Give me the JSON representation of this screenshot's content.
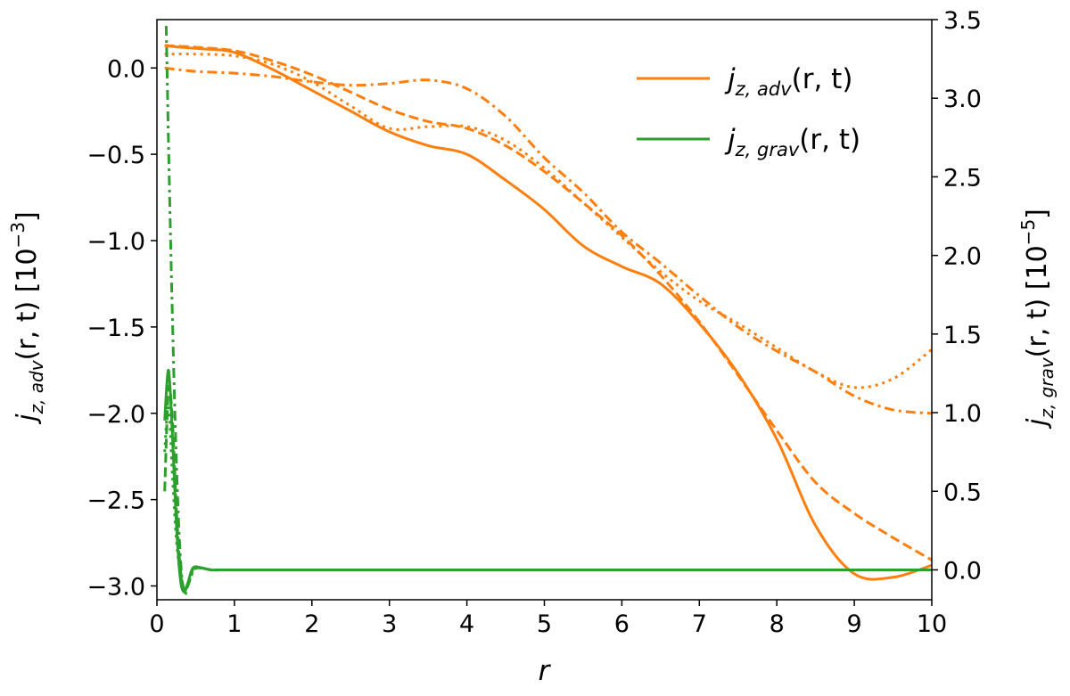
{
  "chart_data": {
    "type": "line",
    "xlabel": "r",
    "ylabel_left": "j̇z,adv(r, t) [10−3]",
    "ylabel_left_parts": {
      "base": "j",
      "dot": "˙",
      "sub": "z, adv",
      "args": "(r, t) [10",
      "exp": "−3",
      "close": "]"
    },
    "ylabel_right": "j̇z,grav(r, t) [10−5]",
    "ylabel_right_parts": {
      "base": "j",
      "dot": "˙",
      "sub": "z, grav",
      "args": "(r, t) [10",
      "exp": "−5",
      "close": "]"
    },
    "xlim": [
      0,
      10.0
    ],
    "ylim_left": [
      -3.08,
      0.28
    ],
    "ylim_right": [
      -0.19,
      3.5
    ],
    "x_ticks": [
      0,
      1,
      2,
      3,
      4,
      5,
      6,
      7,
      8,
      9,
      10
    ],
    "x_tick_labels": [
      "0",
      "1",
      "2",
      "3",
      "4",
      "5",
      "6",
      "7",
      "8",
      "9",
      "10"
    ],
    "y_left_ticks": [
      0.0,
      -0.5,
      -1.0,
      -1.5,
      -2.0,
      -2.5,
      -3.0
    ],
    "y_left_tick_labels": [
      "0.0",
      "−0.5",
      "−1.0",
      "−1.5",
      "−2.0",
      "−2.5",
      "−3.0"
    ],
    "y_right_ticks": [
      3.5,
      3.0,
      2.5,
      2.0,
      1.5,
      1.0,
      0.5,
      0.0
    ],
    "y_right_tick_labels": [
      "3.5",
      "3.0",
      "2.5",
      "2.0",
      "1.5",
      "1.0",
      "0.5",
      "0.0"
    ],
    "grid": false,
    "legend_position": "top-right",
    "legend": [
      {
        "base": "j",
        "dot": "˙",
        "sub": "z, adv",
        "args": "(r, t)",
        "color": "#ff7f0e"
      },
      {
        "base": "j",
        "dot": "˙",
        "sub": "z, grav",
        "args": "(r, t)",
        "color": "#2ca02c"
      }
    ],
    "series": [
      {
        "axis": "left",
        "color": "#ff7f0e",
        "style": "solid",
        "x": [
          0.1,
          0.3,
          0.6,
          1.0,
          1.5,
          2.0,
          2.5,
          3.0,
          3.5,
          4.0,
          4.5,
          5.0,
          5.5,
          6.0,
          6.5,
          7.0,
          7.5,
          8.0,
          8.5,
          9.0,
          9.5,
          10.0
        ],
        "y": [
          0.13,
          0.12,
          0.11,
          0.09,
          -0.01,
          -0.13,
          -0.25,
          -0.37,
          -0.45,
          -0.5,
          -0.65,
          -0.82,
          -1.03,
          -1.15,
          -1.25,
          -1.48,
          -1.77,
          -2.15,
          -2.65,
          -2.93,
          -2.95,
          -2.88
        ]
      },
      {
        "axis": "left",
        "color": "#ff7f0e",
        "style": "dashed",
        "x": [
          0.1,
          0.5,
          1.0,
          1.5,
          2.0,
          2.5,
          3.0,
          3.5,
          4.0,
          4.5,
          5.0,
          5.5,
          6.0,
          6.5,
          7.0,
          7.5,
          8.0,
          8.5,
          9.0,
          9.5,
          10.0
        ],
        "y": [
          0.13,
          0.12,
          0.1,
          0.04,
          -0.04,
          -0.14,
          -0.24,
          -0.31,
          -0.35,
          -0.45,
          -0.6,
          -0.78,
          -0.97,
          -1.2,
          -1.47,
          -1.78,
          -2.1,
          -2.4,
          -2.58,
          -2.72,
          -2.85
        ]
      },
      {
        "axis": "left",
        "color": "#ff7f0e",
        "style": "dotted",
        "x": [
          0.1,
          0.5,
          1.0,
          1.5,
          2.0,
          2.5,
          3.0,
          3.5,
          4.0,
          4.5,
          5.0,
          5.5,
          6.0,
          6.5,
          7.0,
          7.5,
          8.0,
          8.5,
          9.0,
          9.5,
          10.0
        ],
        "y": [
          0.08,
          0.08,
          0.07,
          0.02,
          -0.08,
          -0.22,
          -0.35,
          -0.34,
          -0.34,
          -0.42,
          -0.58,
          -0.78,
          -0.98,
          -1.18,
          -1.35,
          -1.48,
          -1.62,
          -1.76,
          -1.85,
          -1.8,
          -1.63
        ]
      },
      {
        "axis": "left",
        "color": "#ff7f0e",
        "style": "dashdot",
        "x": [
          0.1,
          0.5,
          1.0,
          1.5,
          2.0,
          2.5,
          3.0,
          3.5,
          4.0,
          4.5,
          5.0,
          5.5,
          6.0,
          6.5,
          7.0,
          7.5,
          8.0,
          8.5,
          9.0,
          9.5,
          10.0
        ],
        "y": [
          0.0,
          -0.02,
          -0.03,
          -0.05,
          -0.08,
          -0.1,
          -0.09,
          -0.07,
          -0.12,
          -0.28,
          -0.52,
          -0.72,
          -0.95,
          -1.13,
          -1.32,
          -1.5,
          -1.64,
          -1.76,
          -1.9,
          -1.98,
          -2.0
        ]
      },
      {
        "axis": "right",
        "color": "#2ca02c",
        "style": "solid",
        "x": [
          0.1,
          0.15,
          0.2,
          0.25,
          0.3,
          0.35,
          0.4,
          0.45,
          0.5,
          0.6,
          0.7,
          0.8,
          1.0,
          2.0,
          10.0
        ],
        "y": [
          0.95,
          1.27,
          0.85,
          0.3,
          -0.05,
          -0.14,
          -0.08,
          0.0,
          0.02,
          0.01,
          0.0,
          0.0,
          0.0,
          0.0,
          0.0
        ]
      },
      {
        "axis": "right",
        "color": "#2ca02c",
        "style": "dashed",
        "x": [
          0.1,
          0.15,
          0.2,
          0.25,
          0.3,
          0.35,
          0.4,
          0.45,
          0.5,
          0.6,
          0.7,
          0.8,
          1.0,
          2.0,
          10.0
        ],
        "y": [
          0.5,
          1.15,
          0.95,
          0.4,
          0.02,
          -0.12,
          -0.09,
          -0.01,
          0.02,
          0.01,
          0.0,
          0.0,
          0.0,
          0.0,
          0.0
        ]
      },
      {
        "axis": "right",
        "color": "#2ca02c",
        "style": "dotted",
        "x": [
          0.1,
          0.15,
          0.2,
          0.25,
          0.3,
          0.35,
          0.4,
          0.45,
          0.5,
          0.6,
          0.7,
          0.8,
          1.0,
          2.0,
          10.0
        ],
        "y": [
          0.75,
          1.05,
          0.6,
          0.2,
          -0.02,
          -0.12,
          -0.1,
          -0.03,
          0.01,
          0.01,
          0.0,
          0.0,
          0.0,
          0.0,
          0.0
        ]
      },
      {
        "axis": "right",
        "color": "#2ca02c",
        "style": "dashdot",
        "x": [
          0.12,
          0.15,
          0.2,
          0.25,
          0.3,
          0.35,
          0.4,
          0.45,
          0.5,
          0.6,
          0.7,
          0.8,
          1.0,
          2.0,
          10.0
        ],
        "y": [
          3.46,
          2.7,
          1.6,
          0.7,
          0.1,
          -0.15,
          -0.1,
          -0.02,
          0.01,
          0.01,
          0.0,
          0.0,
          0.0,
          0.0,
          0.0
        ]
      }
    ]
  }
}
